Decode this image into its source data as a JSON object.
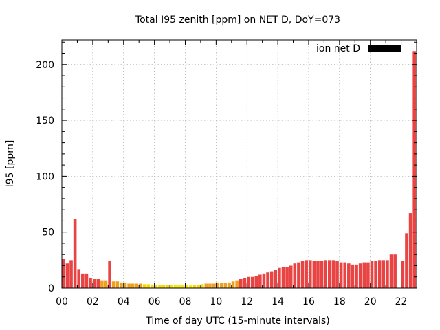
{
  "chart_data": {
    "type": "bar",
    "title": "Total I95 zenith [ppm] on NET D, DoY=073",
    "xlabel": "Time of day UTC (15-minute intervals)",
    "ylabel": "I95 [ppm]",
    "xlim": [
      0,
      23.0
    ],
    "ylim": [
      0,
      222
    ],
    "bin_hours": 0.25,
    "x_ticks": [
      "00",
      "02",
      "04",
      "06",
      "08",
      "10",
      "12",
      "14",
      "16",
      "18",
      "20",
      "22"
    ],
    "y_ticks": [
      "0",
      "50",
      "100",
      "150",
      "200"
    ],
    "legend": {
      "label": "ion net D",
      "color": "#000000",
      "position": "top-right"
    },
    "colors": {
      "high": "#e84444",
      "mid": "#f0a020",
      "low": "#f8d800",
      "lowest": "#f5ea00"
    },
    "series": [
      {
        "name": "ion net D",
        "x": [
          0.0,
          0.25,
          0.5,
          0.75,
          1.0,
          1.25,
          1.5,
          1.75,
          2.0,
          2.25,
          2.5,
          2.75,
          3.0,
          3.25,
          3.5,
          3.75,
          4.0,
          4.25,
          4.5,
          4.75,
          5.0,
          5.25,
          5.5,
          5.75,
          6.0,
          6.25,
          6.5,
          6.75,
          7.0,
          7.25,
          7.5,
          7.75,
          8.0,
          8.25,
          8.5,
          8.75,
          9.0,
          9.25,
          9.5,
          9.75,
          10.0,
          10.25,
          10.5,
          10.75,
          11.0,
          11.25,
          11.5,
          11.75,
          12.0,
          12.25,
          12.5,
          12.75,
          13.0,
          13.25,
          13.5,
          13.75,
          14.0,
          14.25,
          14.5,
          14.75,
          15.0,
          15.25,
          15.5,
          15.75,
          16.0,
          16.25,
          16.5,
          16.75,
          17.0,
          17.25,
          17.5,
          17.75,
          18.0,
          18.25,
          18.5,
          18.75,
          19.0,
          19.25,
          19.5,
          19.75,
          20.0,
          20.25,
          20.5,
          20.75,
          21.0,
          21.25,
          21.5,
          22.0,
          22.25,
          22.5,
          22.75
        ],
        "values": [
          26,
          22,
          25,
          62,
          17,
          13,
          13,
          9,
          8,
          8,
          7,
          7,
          24,
          6,
          6,
          5,
          5,
          4,
          4,
          4,
          4,
          3.5,
          3.5,
          3,
          3,
          3,
          2.8,
          2.8,
          2.8,
          2.6,
          2.6,
          2.8,
          3,
          3,
          3,
          3,
          3.5,
          4,
          4,
          4,
          5,
          4.5,
          4.5,
          5,
          6,
          7,
          8,
          9,
          10,
          10,
          11,
          12,
          13,
          14,
          15,
          16,
          18,
          19,
          19,
          20,
          22,
          23,
          24,
          25,
          25,
          24,
          24,
          24,
          25,
          25,
          25,
          24,
          23,
          23,
          22,
          21,
          21,
          22,
          23,
          23,
          24,
          24,
          25,
          25,
          25,
          30,
          30,
          24,
          49,
          67,
          212
        ],
        "colors": [
          "high",
          "high",
          "high",
          "high",
          "high",
          "high",
          "high",
          "high",
          "high",
          "high",
          "mid",
          "mid",
          "high",
          "mid",
          "mid",
          "mid",
          "mid",
          "mid",
          "mid",
          "mid",
          "mid",
          "low",
          "low",
          "low",
          "low",
          "low",
          "low",
          "low",
          "lowest",
          "lowest",
          "lowest",
          "lowest",
          "lowest",
          "lowest",
          "low",
          "low",
          "low",
          "mid",
          "mid",
          "mid",
          "mid",
          "mid",
          "mid",
          "mid",
          "mid",
          "mid",
          "high",
          "high",
          "high",
          "high",
          "high",
          "high",
          "high",
          "high",
          "high",
          "high",
          "high",
          "high",
          "high",
          "high",
          "high",
          "high",
          "high",
          "high",
          "high",
          "high",
          "high",
          "high",
          "high",
          "high",
          "high",
          "high",
          "high",
          "high",
          "high",
          "high",
          "high",
          "high",
          "high",
          "high",
          "high",
          "high",
          "high",
          "high",
          "high",
          "high",
          "high",
          "high",
          "high",
          "high",
          "high"
        ]
      }
    ]
  }
}
